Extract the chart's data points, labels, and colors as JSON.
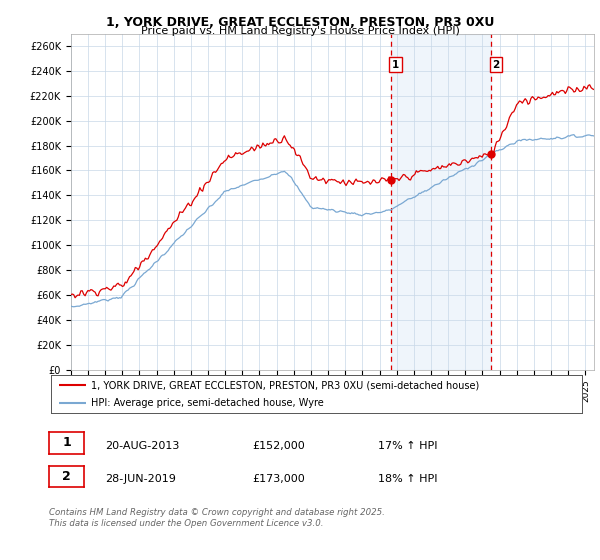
{
  "title": "1, YORK DRIVE, GREAT ECCLESTON, PRESTON, PR3 0XU",
  "subtitle": "Price paid vs. HM Land Registry's House Price Index (HPI)",
  "ylabel_ticks": [
    "£0",
    "£20K",
    "£40K",
    "£60K",
    "£80K",
    "£100K",
    "£120K",
    "£140K",
    "£160K",
    "£180K",
    "£200K",
    "£220K",
    "£240K",
    "£260K"
  ],
  "ytick_values": [
    0,
    20000,
    40000,
    60000,
    80000,
    100000,
    120000,
    140000,
    160000,
    180000,
    200000,
    220000,
    240000,
    260000
  ],
  "ylim": [
    0,
    270000
  ],
  "xlim_start": 1995.0,
  "xlim_end": 2025.5,
  "purchase1_date": 2013.64,
  "purchase1_price": 152000,
  "purchase1_label": "1",
  "purchase2_date": 2019.49,
  "purchase2_price": 173000,
  "purchase2_label": "2",
  "red_line_color": "#dd0000",
  "blue_line_color": "#7aa8d2",
  "vline_color": "#dd0000",
  "highlight_fill": "#ddeeff",
  "legend_label_red": "1, YORK DRIVE, GREAT ECCLESTON, PRESTON, PR3 0XU (semi-detached house)",
  "legend_label_blue": "HPI: Average price, semi-detached house, Wyre",
  "annot1_date": "20-AUG-2013",
  "annot1_price": "£152,000",
  "annot1_hpi": "17% ↑ HPI",
  "annot2_date": "28-JUN-2019",
  "annot2_price": "£173,000",
  "annot2_hpi": "18% ↑ HPI",
  "footnote": "Contains HM Land Registry data © Crown copyright and database right 2025.\nThis data is licensed under the Open Government Licence v3.0.",
  "background_color": "#ffffff",
  "grid_color": "#c8d8e8"
}
